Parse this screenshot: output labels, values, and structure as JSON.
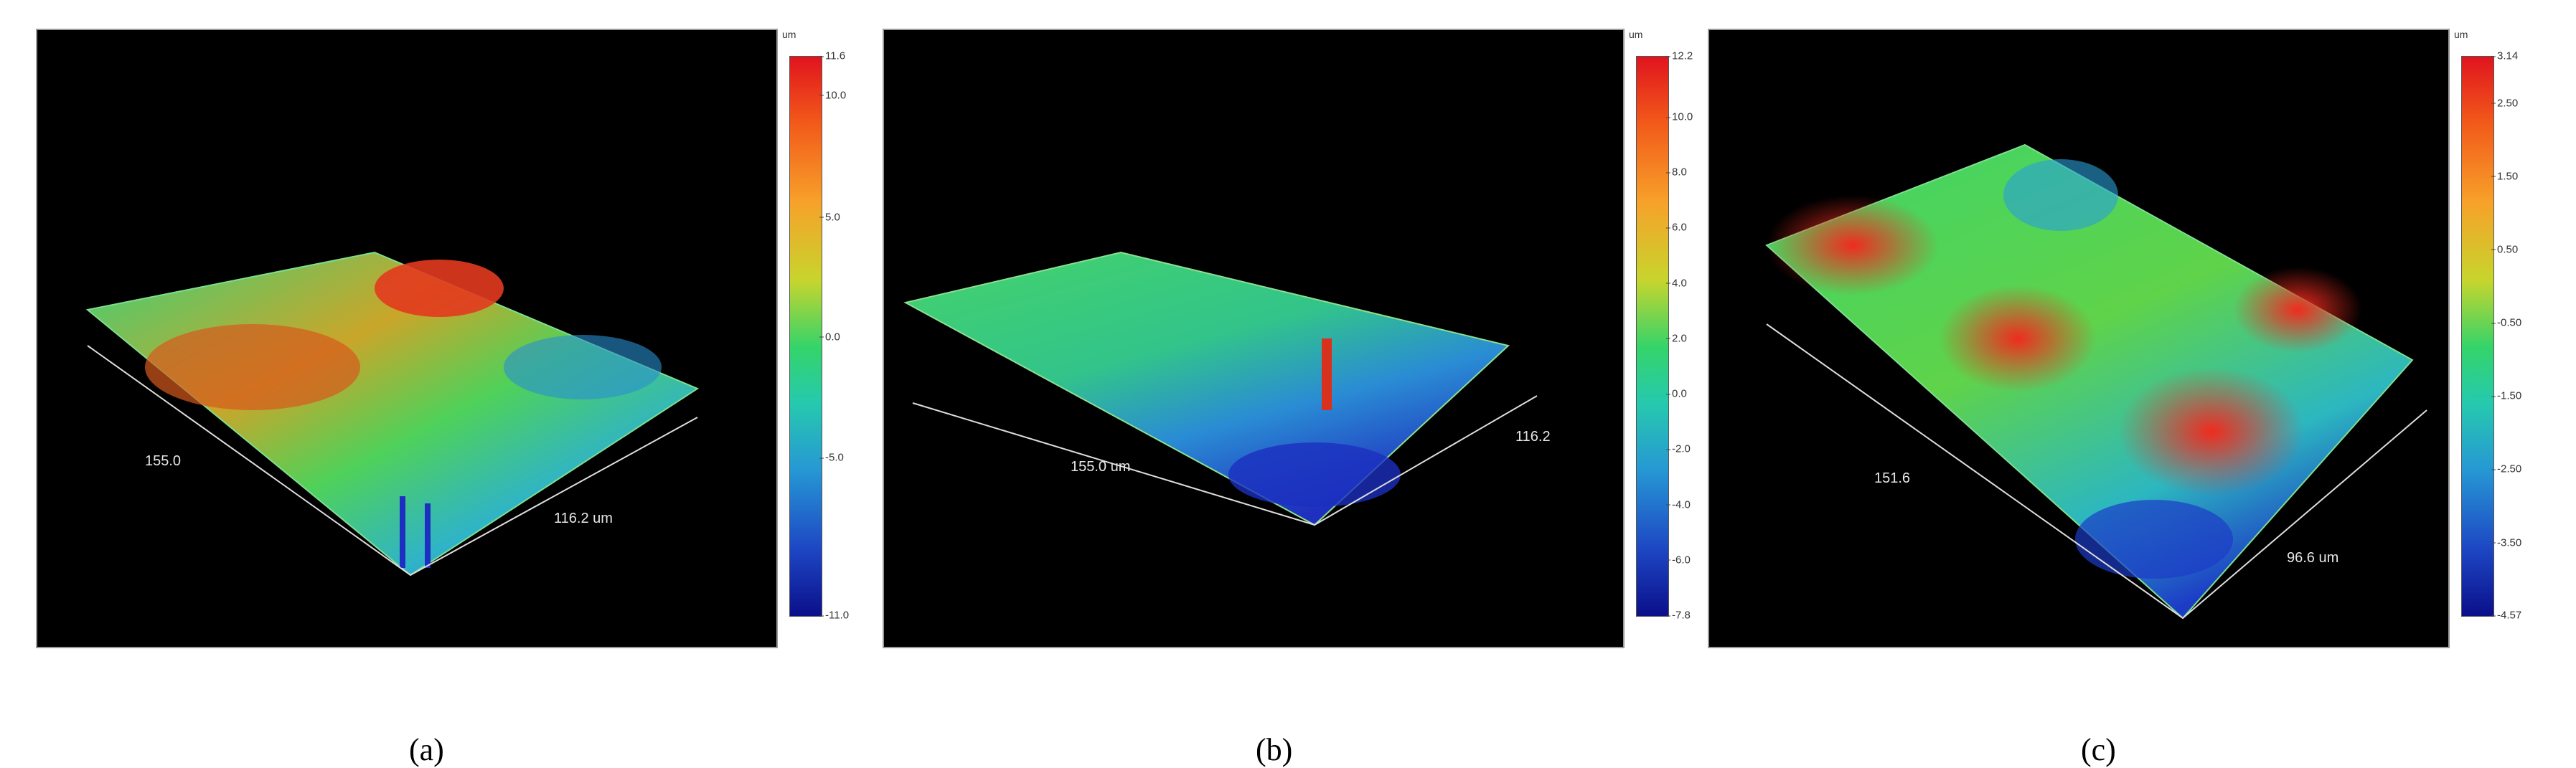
{
  "panels": [
    {
      "caption": "(a)",
      "unit": "um",
      "x_label": "155.0",
      "y_label": "116.2 um",
      "scale_ticks": [
        "11.6",
        "10.0",
        "5.0",
        "0.0",
        "-5.0",
        "-11.0"
      ]
    },
    {
      "caption": "(b)",
      "unit": "um",
      "x_label": "155.0 um",
      "y_label": "116.2",
      "scale_ticks": [
        "12.2",
        "10.0",
        "8.0",
        "6.0",
        "4.0",
        "2.0",
        "0.0",
        "-2.0",
        "-4.0",
        "-6.0",
        "-7.8"
      ]
    },
    {
      "caption": "(c)",
      "unit": "um",
      "x_label": "151.6",
      "y_label": "96.6 um",
      "scale_ticks": [
        "3.14",
        "2.50",
        "1.50",
        "0.50",
        "-0.50",
        "-1.50",
        "-2.50",
        "-3.50",
        "-4.57"
      ]
    }
  ]
}
